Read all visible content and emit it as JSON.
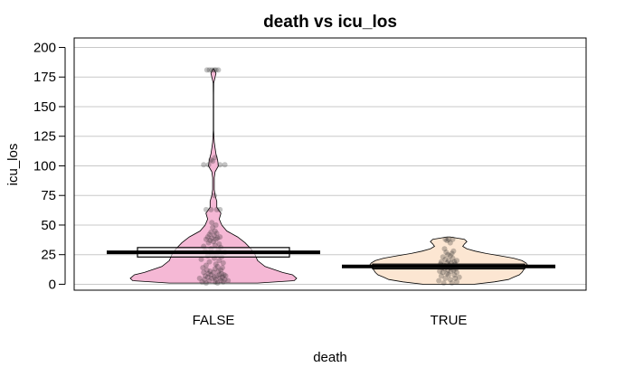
{
  "chart_data": {
    "type": "pirateplot",
    "title": "death vs icu_los",
    "xlabel": "death",
    "ylabel": "icu_los",
    "categories": [
      "FALSE",
      "TRUE"
    ],
    "ylim": [
      -5,
      208
    ],
    "yticks": [
      0,
      25,
      50,
      75,
      100,
      125,
      150,
      175,
      200
    ],
    "grid": true,
    "groups": [
      {
        "name": "FALSE",
        "fill": "#f5b8d5",
        "mean": 27,
        "ci": [
          23,
          31
        ],
        "density": [
          [
            1,
            0.53
          ],
          [
            3,
            0.97
          ],
          [
            5,
            1.0
          ],
          [
            8,
            0.95
          ],
          [
            10,
            0.83
          ],
          [
            15,
            0.62
          ],
          [
            20,
            0.53
          ],
          [
            25,
            0.5
          ],
          [
            30,
            0.45
          ],
          [
            35,
            0.38
          ],
          [
            40,
            0.29
          ],
          [
            45,
            0.16
          ],
          [
            50,
            0.1
          ],
          [
            55,
            0.07
          ],
          [
            60,
            0.09
          ],
          [
            65,
            0.04
          ],
          [
            70,
            0.04
          ],
          [
            75,
            0.02
          ],
          [
            80,
            0.01
          ],
          [
            85,
            0.01
          ],
          [
            90,
            0.01
          ],
          [
            95,
            0.02
          ],
          [
            100,
            0.06
          ],
          [
            105,
            0.05
          ],
          [
            110,
            0.03
          ],
          [
            115,
            0.02
          ],
          [
            120,
            0.01
          ],
          [
            125,
            0.005
          ],
          [
            130,
            0.002
          ],
          [
            140,
            0.002
          ],
          [
            150,
            0.002
          ],
          [
            160,
            0.002
          ],
          [
            170,
            0.003
          ],
          [
            175,
            0.02
          ],
          [
            178,
            0.03
          ],
          [
            180,
            0.02
          ],
          [
            182,
            0.003
          ]
        ],
        "points": [
          [
            1,
            -0.09
          ],
          [
            1,
            0.05
          ],
          [
            2,
            0.12
          ],
          [
            2,
            -0.14
          ],
          [
            2,
            0.02
          ],
          [
            3,
            -0.05
          ],
          [
            3,
            0.09
          ],
          [
            3,
            0.18
          ],
          [
            4,
            -0.11
          ],
          [
            4,
            0.03
          ],
          [
            4,
            0.14
          ],
          [
            5,
            -0.02
          ],
          [
            5,
            0.08
          ],
          [
            5,
            -0.17
          ],
          [
            6,
            0.01
          ],
          [
            6,
            0.11
          ],
          [
            6,
            -0.07
          ],
          [
            7,
            0.04
          ],
          [
            7,
            -0.1
          ],
          [
            7,
            0.15
          ],
          [
            8,
            -0.03
          ],
          [
            8,
            0.07
          ],
          [
            8,
            0.13
          ],
          [
            9,
            -0.06
          ],
          [
            9,
            0.1
          ],
          [
            10,
            0.0
          ],
          [
            10,
            -0.12
          ],
          [
            11,
            0.06
          ],
          [
            11,
            -0.04
          ],
          [
            12,
            0.09
          ],
          [
            12,
            -0.08
          ],
          [
            13,
            0.02
          ],
          [
            14,
            -0.13
          ],
          [
            14,
            0.11
          ],
          [
            15,
            0.05
          ],
          [
            16,
            -0.09
          ],
          [
            17,
            0.03
          ],
          [
            18,
            0.12
          ],
          [
            19,
            -0.05
          ],
          [
            20,
            0.07
          ],
          [
            21,
            -0.15
          ],
          [
            22,
            0.01
          ],
          [
            23,
            0.1
          ],
          [
            24,
            -0.07
          ],
          [
            25,
            0.04
          ],
          [
            26,
            -0.02
          ],
          [
            27,
            0.14
          ],
          [
            28,
            -0.1
          ],
          [
            29,
            0.06
          ],
          [
            30,
            -0.03
          ],
          [
            31,
            0.09
          ],
          [
            32,
            -0.12
          ],
          [
            33,
            0.02
          ],
          [
            34,
            0.07
          ],
          [
            35,
            -0.06
          ],
          [
            36,
            0.0
          ],
          [
            37,
            -0.04
          ],
          [
            38,
            0.03
          ],
          [
            38,
            -0.09
          ],
          [
            39,
            0.05
          ],
          [
            39,
            -0.02
          ],
          [
            40,
            0.08
          ],
          [
            40,
            -0.07
          ],
          [
            41,
            0.01
          ],
          [
            42,
            -0.05
          ],
          [
            43,
            0.04
          ],
          [
            44,
            -0.03
          ],
          [
            45,
            0.02
          ],
          [
            48,
            -0.01
          ],
          [
            50,
            0.03
          ],
          [
            52,
            -0.02
          ],
          [
            63,
            -0.09
          ],
          [
            63,
            -0.03
          ],
          [
            63,
            0.04
          ],
          [
            63,
            0.08
          ],
          [
            75,
            0.01
          ],
          [
            101,
            -0.12
          ],
          [
            101,
            -0.06
          ],
          [
            101,
            0.08
          ],
          [
            101,
            0.14
          ],
          [
            104,
            -0.01
          ],
          [
            105,
            -0.03
          ],
          [
            107,
            0.02
          ],
          [
            181,
            -0.08
          ],
          [
            181,
            -0.05
          ],
          [
            181,
            -0.02
          ],
          [
            181,
            0.01
          ],
          [
            181,
            0.03
          ],
          [
            181,
            0.06
          ]
        ]
      },
      {
        "name": "TRUE",
        "fill": "#fce6d2",
        "mean": 15,
        "ci": [
          13,
          17
        ],
        "density": [
          [
            0,
            0.3
          ],
          [
            2,
            0.55
          ],
          [
            4,
            0.72
          ],
          [
            6,
            0.78
          ],
          [
            8,
            0.85
          ],
          [
            10,
            0.88
          ],
          [
            12,
            0.9
          ],
          [
            14,
            0.92
          ],
          [
            16,
            0.95
          ],
          [
            18,
            0.93
          ],
          [
            20,
            0.88
          ],
          [
            22,
            0.78
          ],
          [
            24,
            0.62
          ],
          [
            26,
            0.45
          ],
          [
            28,
            0.32
          ],
          [
            30,
            0.22
          ],
          [
            32,
            0.17
          ],
          [
            34,
            0.19
          ],
          [
            36,
            0.22
          ],
          [
            38,
            0.19
          ],
          [
            39,
            0.1
          ],
          [
            40,
            0.02
          ]
        ],
        "points": [
          [
            1,
            -0.06
          ],
          [
            1,
            0.04
          ],
          [
            2,
            0.1
          ],
          [
            3,
            -0.12
          ],
          [
            4,
            0.02
          ],
          [
            5,
            0.08
          ],
          [
            5,
            -0.04
          ],
          [
            6,
            0.13
          ],
          [
            7,
            -0.09
          ],
          [
            8,
            0.0
          ],
          [
            8,
            0.07
          ],
          [
            9,
            -0.02
          ],
          [
            10,
            0.1
          ],
          [
            10,
            -0.07
          ],
          [
            11,
            0.03
          ],
          [
            11,
            -0.11
          ],
          [
            12,
            0.06
          ],
          [
            12,
            -0.01
          ],
          [
            13,
            0.09
          ],
          [
            13,
            -0.05
          ],
          [
            14,
            0.02
          ],
          [
            14,
            -0.08
          ],
          [
            15,
            0.05
          ],
          [
            15,
            -0.03
          ],
          [
            15,
            0.11
          ],
          [
            16,
            -0.06
          ],
          [
            16,
            0.01
          ],
          [
            17,
            0.08
          ],
          [
            17,
            -0.1
          ],
          [
            18,
            0.03
          ],
          [
            18,
            -0.02
          ],
          [
            19,
            0.07
          ],
          [
            19,
            -0.09
          ],
          [
            20,
            0.0
          ],
          [
            20,
            0.1
          ],
          [
            21,
            -0.04
          ],
          [
            22,
            0.05
          ],
          [
            23,
            -0.07
          ],
          [
            24,
            0.02
          ],
          [
            25,
            -0.01
          ],
          [
            26,
            0.04
          ],
          [
            27,
            -0.03
          ],
          [
            28,
            0.06
          ],
          [
            30,
            -0.05
          ],
          [
            35,
            0.02
          ],
          [
            37,
            -0.02
          ],
          [
            38,
            0.0
          ],
          [
            38,
            0.05
          ],
          [
            38,
            -0.04
          ]
        ]
      }
    ]
  }
}
